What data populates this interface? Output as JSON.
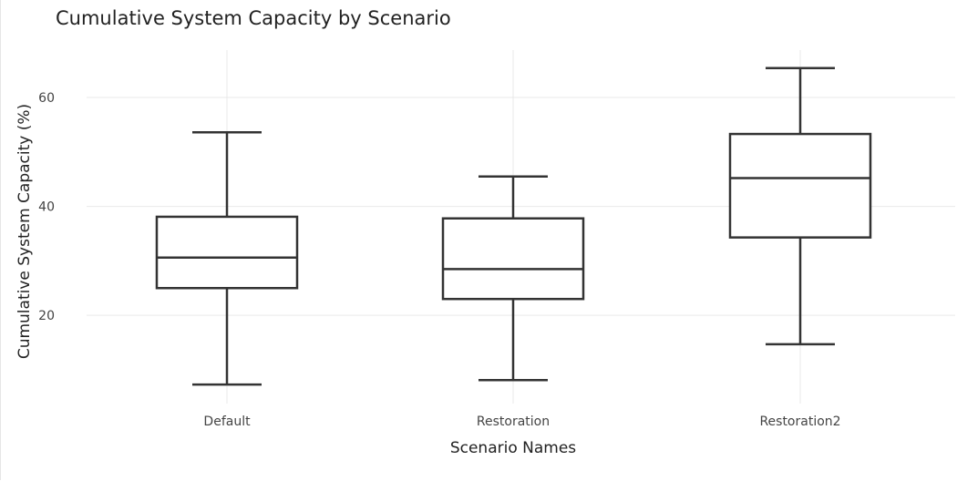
{
  "chart_data": {
    "type": "box",
    "title": "Cumulative System Capacity by Scenario",
    "xlabel": "Scenario Names",
    "ylabel": "Cumulative System Capacity (%)",
    "categories": [
      "Default",
      "Restoration",
      "Restoration2"
    ],
    "boxes": [
      {
        "name": "Default",
        "min": 7.3,
        "q1": 25.0,
        "median": 30.6,
        "q3": 38.1,
        "max": 53.6
      },
      {
        "name": "Restoration",
        "min": 8.1,
        "q1": 23.0,
        "median": 28.5,
        "q3": 37.8,
        "max": 45.5
      },
      {
        "name": "Restoration2",
        "min": 14.7,
        "q1": 34.3,
        "median": 45.2,
        "q3": 53.3,
        "max": 65.4
      }
    ],
    "y_ticks": [
      20,
      40,
      60
    ],
    "y_tick_labels": [
      "20",
      "40",
      "60"
    ],
    "ylim": [
      3.8,
      68.7
    ],
    "grid": true,
    "legend": "none",
    "box_color": "#333333",
    "grid_color": "#e9e9e9"
  }
}
